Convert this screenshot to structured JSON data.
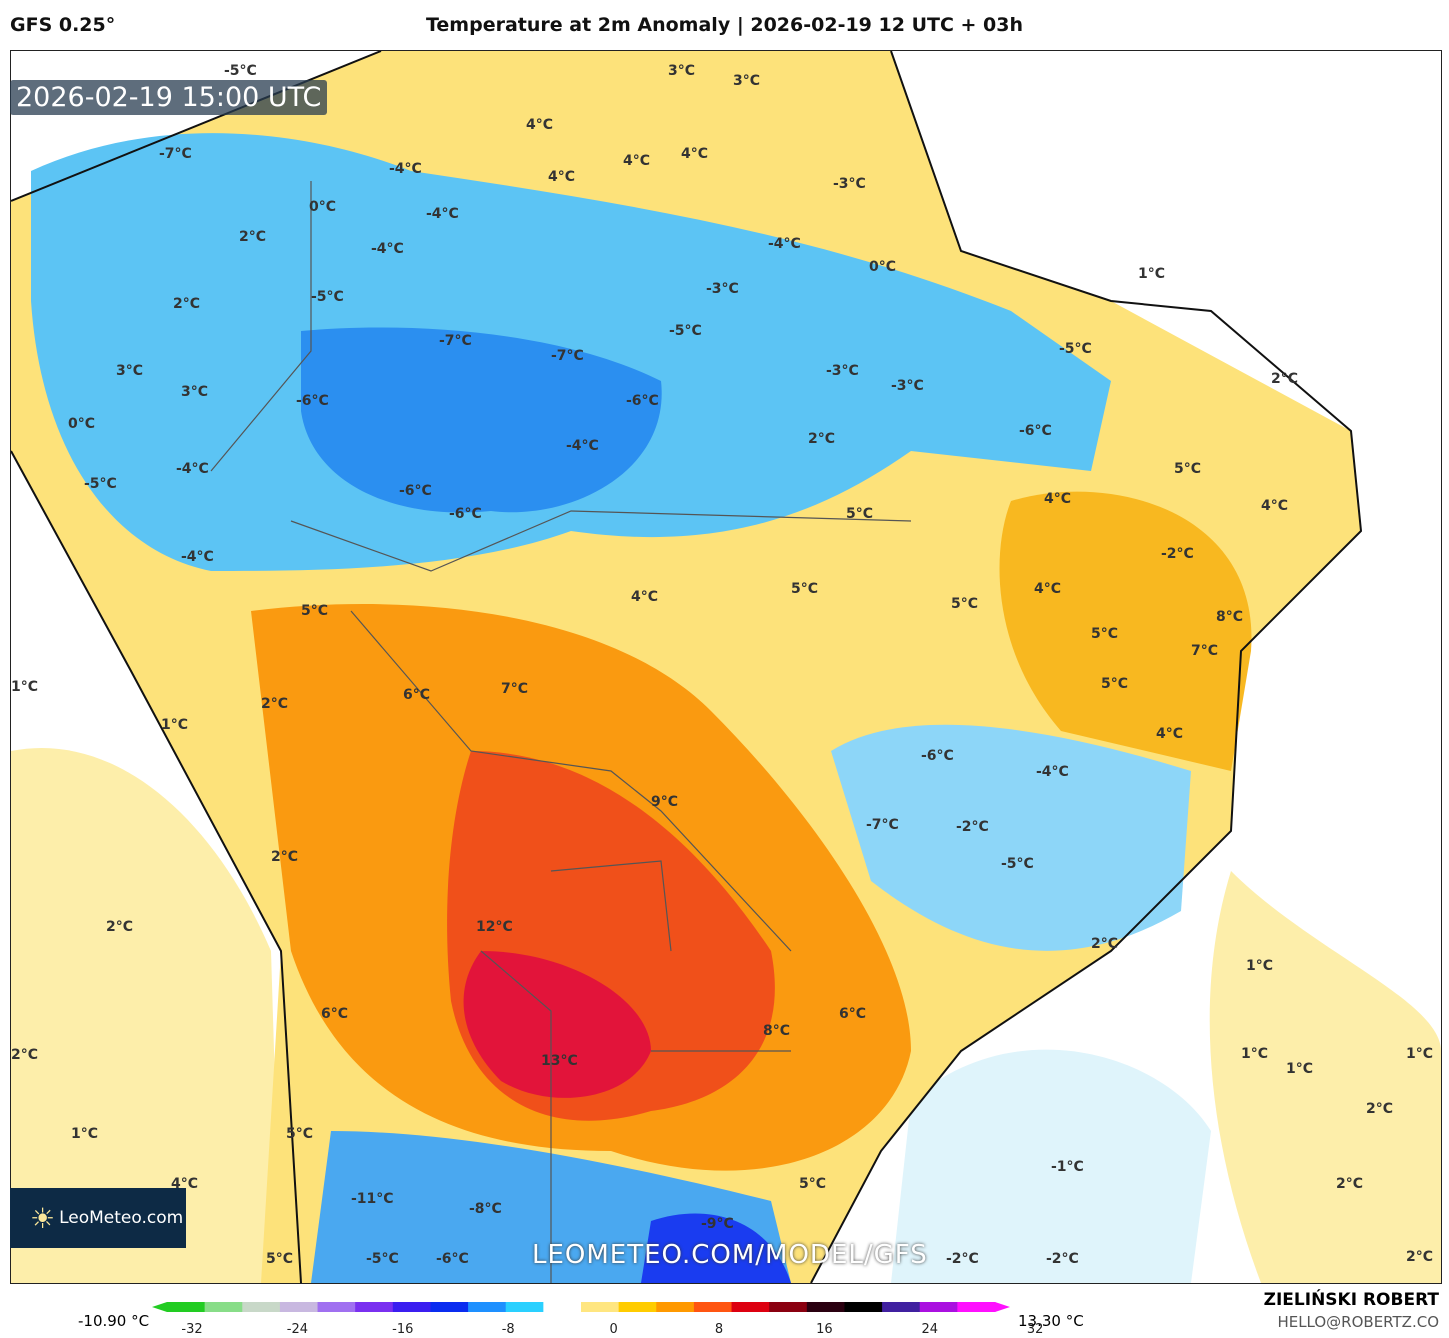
{
  "header": {
    "model": "GFS 0.25°",
    "title": "Temperature at 2m Anomaly | 2026-02-19 12 UTC + 03h"
  },
  "map": {
    "valid_time": "2026-02-19 15:00 UTC",
    "watermark": "LEOMETEO.COM/MODEL/GFS",
    "logo": "LeoMeteo.com",
    "labels": [
      "-5°C",
      "-7°C",
      "4°C",
      "3°C",
      "3°C",
      "4°C",
      "4°C",
      "4°C",
      "-4°C",
      "-4°C",
      "2°C",
      "0°C",
      "-4°C",
      "-3°C",
      "-4°C",
      "0°C",
      "1°C",
      "-5°C",
      "-3°C",
      "2°C",
      "-7°C",
      "-7°C",
      "-5°C",
      "-5°C",
      "3°C",
      "3°C",
      "-6°C",
      "-6°C",
      "-3°C",
      "-3°C",
      "2°C",
      "0°C",
      "-4°C",
      "-4°C",
      "2°C",
      "-6°C",
      "-6°C",
      "5°C",
      "-6°C",
      "5°C",
      "4°C",
      "4°C",
      "-5°C",
      "-2°C",
      "4°C",
      "5°C",
      "5°C",
      "5°C",
      "8°C",
      "-4°C",
      "5°C",
      "4°C",
      "7°C",
      "1°C",
      "5°C",
      "6°C",
      "7°C",
      "1°C",
      "2°C",
      "4°C",
      "9°C",
      "-6°C",
      "-4°C",
      "-7°C",
      "-2°C",
      "-5°C",
      "2°C",
      "12°C",
      "2°C",
      "2°C",
      "1°C",
      "6°C",
      "6°C",
      "8°C",
      "13°C",
      "2°C",
      "1°C",
      "1°C",
      "1°C",
      "1°C",
      "2°C",
      "5°C",
      "4°C",
      "-11°C",
      "-8°C",
      "-9°C",
      "5°C",
      "-1°C",
      "2°C",
      "5°C",
      "-5°C",
      "-6°C",
      "-2°C",
      "-2°C",
      "2°C"
    ]
  },
  "colorbar": {
    "min_label": "-10.90 °C",
    "max_label": "13.30 °C",
    "ticks": [
      "-32",
      "-24",
      "-16",
      "-8",
      "0",
      "8",
      "16",
      "24",
      "32"
    ],
    "colors": [
      "#22cc22",
      "#88dd88",
      "#c8d8c8",
      "#c8b8e0",
      "#a070f0",
      "#7a30f0",
      "#3b1ef0",
      "#0a2cf0",
      "#1e90ff",
      "#2ad0ff",
      "#ffffff",
      "#ffe680",
      "#ffcc00",
      "#ff9900",
      "#ff5511",
      "#dd0010",
      "#8a0010",
      "#2a0010",
      "#000000",
      "#4020a0",
      "#aa10e0",
      "#ff10ff"
    ]
  },
  "credit": {
    "author": "ZIELIŃSKI ROBERT",
    "email": "HELLO@ROBERTZ.CO"
  }
}
